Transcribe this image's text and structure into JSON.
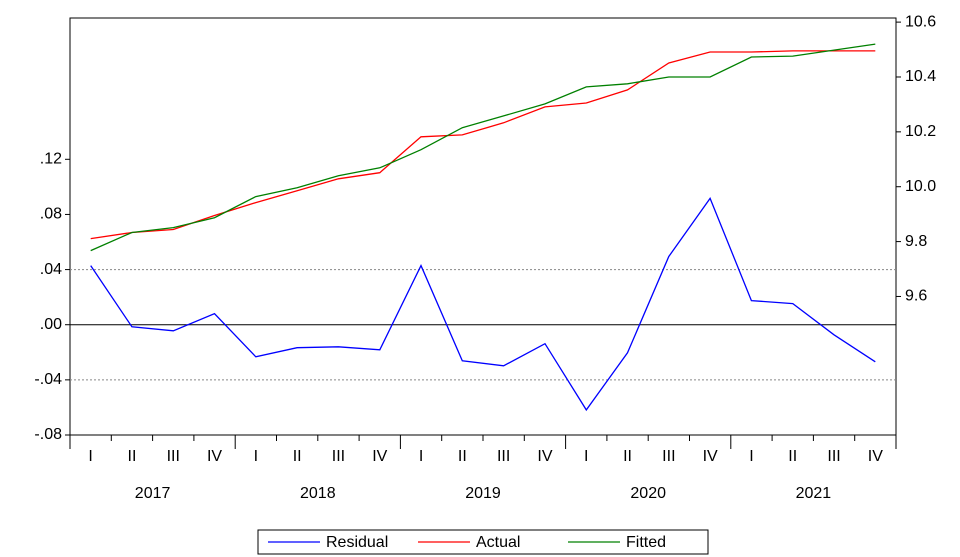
{
  "chart_data": {
    "type": "line",
    "categories": [
      "I",
      "II",
      "III",
      "IV",
      "I",
      "II",
      "III",
      "IV",
      "I",
      "II",
      "III",
      "IV",
      "I",
      "II",
      "III",
      "IV",
      "I",
      "II",
      "III",
      "IV"
    ],
    "groups": [
      "2017",
      "2018",
      "2019",
      "2020",
      "2021"
    ],
    "series": [
      {
        "name": "Residual",
        "color": "#0000ff",
        "axis": "y",
        "values": [
          0.0429,
          -0.0015,
          -0.0044,
          0.008,
          -0.0233,
          -0.0167,
          -0.016,
          -0.0182,
          0.0429,
          -0.0262,
          -0.0298,
          -0.0138,
          -0.0618,
          -0.0204,
          0.0495,
          0.0916,
          0.0175,
          0.0153,
          -0.0073,
          -0.0269
        ]
      },
      {
        "name": "Actual",
        "color": "#ff0000",
        "axis": "y2",
        "values": [
          9.811,
          9.833,
          9.844,
          9.895,
          9.942,
          9.985,
          10.029,
          10.051,
          10.182,
          10.189,
          10.233,
          10.291,
          10.305,
          10.353,
          10.451,
          10.491,
          10.491,
          10.495,
          10.495,
          10.495
        ]
      },
      {
        "name": "Fitted",
        "color": "#008000",
        "axis": "y2",
        "values": [
          9.767,
          9.833,
          9.851,
          9.887,
          9.964,
          9.996,
          10.04,
          10.069,
          10.135,
          10.215,
          10.258,
          10.302,
          10.364,
          10.375,
          10.4,
          10.4,
          10.473,
          10.476,
          10.498,
          10.52
        ]
      }
    ],
    "ylim": [
      -0.08,
      0.2225
    ],
    "yticks": [
      {
        "value": -0.08,
        "label": "-.08"
      },
      {
        "value": -0.04,
        "label": "-.04"
      },
      {
        "value": 0,
        "label": ".00"
      },
      {
        "value": 0.04,
        "label": ".04"
      },
      {
        "value": 0.08,
        "label": ".08"
      },
      {
        "value": 0.12,
        "label": ".12"
      }
    ],
    "y2lim": [
      9.095,
      10.615
    ],
    "y2ticks": [
      9.6,
      9.8,
      {
        "value": 10.0,
        "label": "10.0"
      },
      10.2,
      10.4,
      10.6
    ],
    "reference_lines": [
      {
        "value": 0.04,
        "dashed": true
      },
      {
        "value": 0,
        "dashed": false
      },
      {
        "value": -0.04,
        "dashed": true
      }
    ],
    "legend": "bottom"
  }
}
